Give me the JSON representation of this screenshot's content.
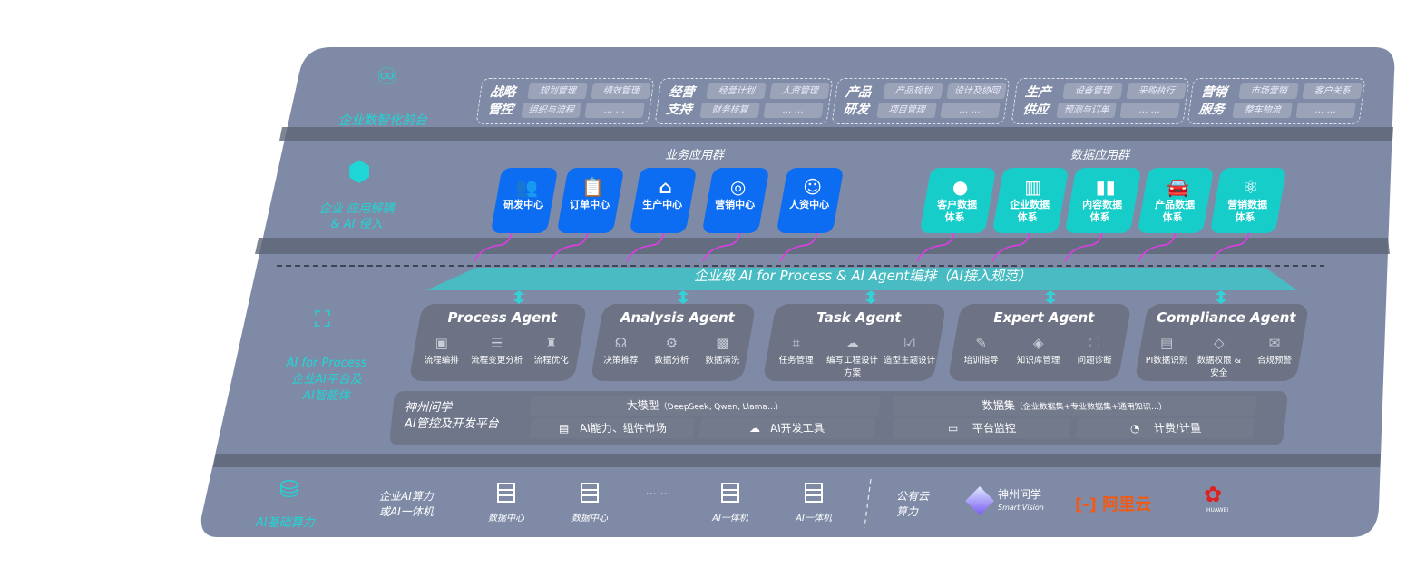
{
  "colors": {
    "panel": "#7f8ba6",
    "accent_cyan": "#1fd6d6",
    "business_blue": "#0c6cf2",
    "data_teal": "#17cdc9",
    "arrow_magenta": "#e23be8",
    "agent_card": "#6d7384"
  },
  "tier1": {
    "label": "企业数智化前台",
    "icon": "brain-icon",
    "groups": [
      {
        "title": [
          "战略",
          "管控"
        ],
        "items": [
          "规划管理",
          "绩效管理",
          "组织与流程",
          "… …"
        ]
      },
      {
        "title": [
          "经营",
          "支持"
        ],
        "items": [
          "经营计划",
          "人资管理",
          "财务核算",
          "… …"
        ]
      },
      {
        "title": [
          "产品",
          "研发"
        ],
        "items": [
          "产品规划",
          "设计及协同",
          "项目管理",
          "… …"
        ]
      },
      {
        "title": [
          "生产",
          "供应"
        ],
        "items": [
          "设备管理",
          "采购执行",
          "预测与订单",
          "… …"
        ]
      },
      {
        "title": [
          "营销",
          "服务"
        ],
        "items": [
          "市场营销",
          "客户关系",
          "整车物流",
          "… …"
        ]
      }
    ]
  },
  "tier2": {
    "label": [
      "企业 应用解耦",
      "& AI 侵入"
    ],
    "icon": "network-node-icon",
    "business_title": "业务应用群",
    "data_title": "数据应用群",
    "business": [
      {
        "label": "研发中心",
        "icon": "team-icon"
      },
      {
        "label": "订单中心",
        "icon": "clipboard-icon"
      },
      {
        "label": "生产中心",
        "icon": "factory-icon"
      },
      {
        "label": "营销中心",
        "icon": "target-icon"
      },
      {
        "label": "人资中心",
        "icon": "people-icon"
      }
    ],
    "data": [
      {
        "label": [
          "客户数据",
          "体系"
        ],
        "icon": "user-icon"
      },
      {
        "label": [
          "企业数据",
          "体系"
        ],
        "icon": "building-icon"
      },
      {
        "label": [
          "内容数据",
          "体系"
        ],
        "icon": "books-icon"
      },
      {
        "label": [
          "产品数据",
          "体系"
        ],
        "icon": "car-icon"
      },
      {
        "label": [
          "营销数据",
          "体系"
        ],
        "icon": "atom-icon"
      }
    ]
  },
  "orchestration": "企业级 AI for Process & AI Agent编排（AI接入规范）",
  "tier3": {
    "label": [
      "AI for Process",
      "企业AI平台及",
      "AI智能体"
    ],
    "icon": "face-scan-icon",
    "agents": [
      {
        "name": "Process Agent",
        "items": [
          "流程编排",
          "流程变更分析",
          "流程优化"
        ]
      },
      {
        "name": "Analysis Agent",
        "items": [
          "决策推荐",
          "数据分析",
          "数据清洗"
        ]
      },
      {
        "name": "Task Agent",
        "items": [
          "任务管理",
          "编写工程设计方案",
          "造型主题设计"
        ]
      },
      {
        "name": "Expert Agent",
        "items": [
          "培训指导",
          "知识库管理",
          "问题诊断"
        ]
      },
      {
        "name": "Compliance Agent",
        "items": [
          "PI数据识别",
          "数据权限 & 安全",
          "合规预警"
        ]
      }
    ],
    "platform": {
      "title": [
        "神州问学",
        "AI管控及开发平台"
      ],
      "model": "大模型",
      "model_note": "（DeepSeek, Qwen, Llama...）",
      "market": "AI能力、组件市场",
      "devtools": "AI开发工具",
      "dataset": "数据集",
      "dataset_note": "（企业数据集+专业数据集+通用知识...）",
      "monitor": "平台监控",
      "billing": "计费/计量"
    }
  },
  "tier4": {
    "label": "AI基础算力",
    "icon": "database-icon",
    "private_label": [
      "企业AI算力",
      "或AI一体机"
    ],
    "servers": [
      "数据中心",
      "数据中心",
      "AI一体机",
      "AI一体机"
    ],
    "ellipsis": "… …",
    "public_label": [
      "公有云",
      "算力"
    ],
    "vendors": {
      "shenzhou": "神州问学",
      "shenzhou_en": "Smart Vision",
      "aliyun": "阿里云",
      "huawei": "HUAWEI"
    }
  }
}
